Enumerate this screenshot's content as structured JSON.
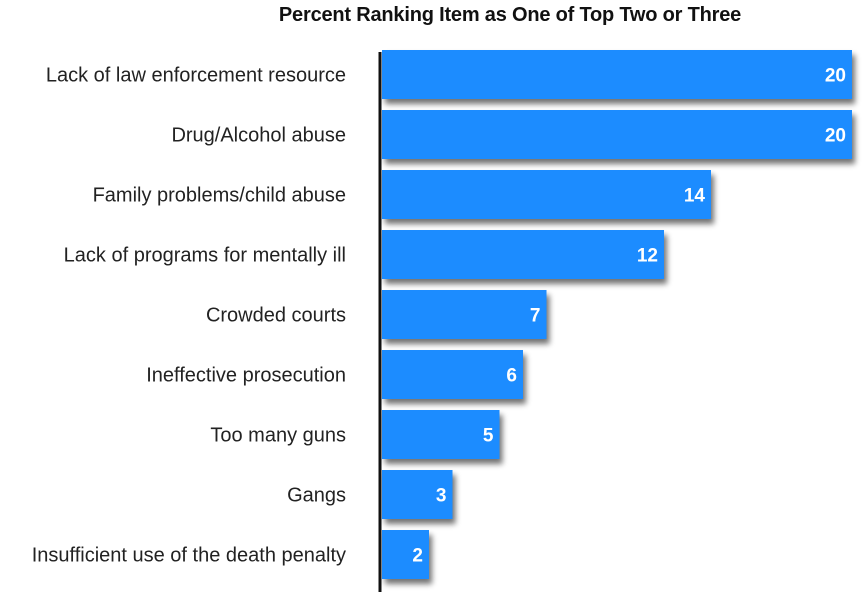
{
  "chart_data": {
    "type": "bar",
    "orientation": "horizontal",
    "title": "Percent Ranking Item as One of Top Two or Three",
    "categories": [
      "Lack of law enforcement resource",
      "Drug/Alcohol abuse",
      "Family problems/child abuse",
      "Lack of programs for mentally ill",
      "Crowded courts",
      "Ineffective prosecution",
      "Too many guns",
      "Gangs",
      "Insufficient use of the death penalty"
    ],
    "values": [
      20,
      20,
      14,
      12,
      7,
      6,
      5,
      3,
      2
    ],
    "value_labels": [
      "20",
      "20",
      "14",
      "12",
      "7",
      "6",
      "5",
      "3",
      "2"
    ],
    "xlim": [
      0,
      20
    ],
    "grid": false,
    "bar_color": "#1a8cff",
    "axis_color": "#111111"
  }
}
